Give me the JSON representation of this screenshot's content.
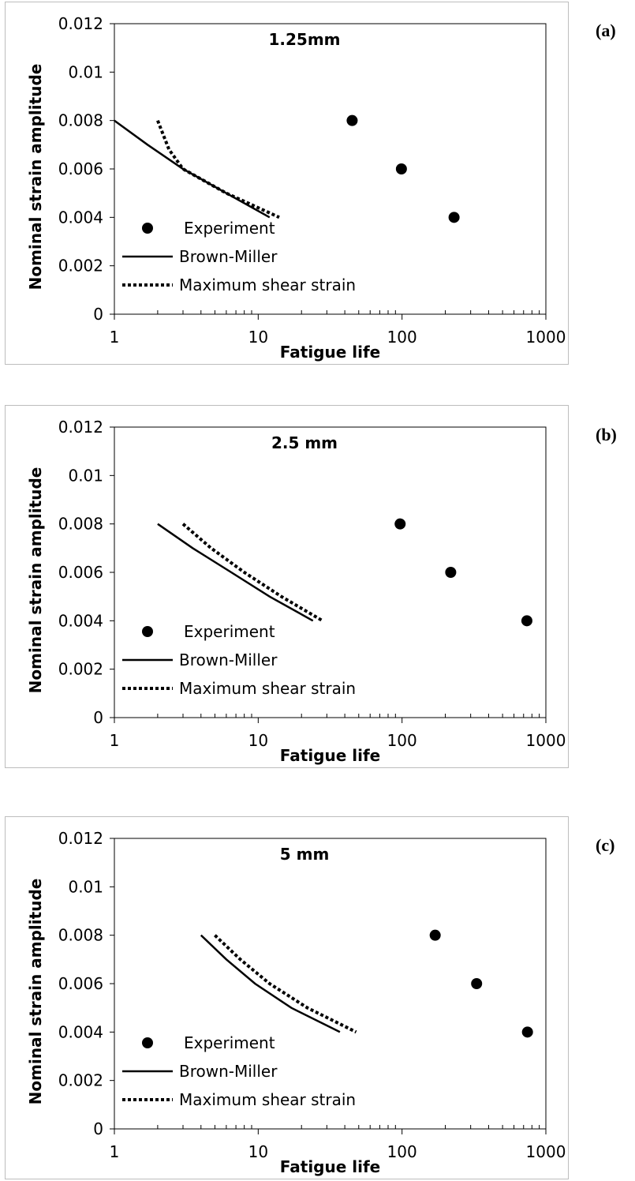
{
  "chart_data": [
    {
      "panel_label": "(a)",
      "type": "line",
      "title": "1.25mm",
      "xlabel": "Fatigue life",
      "ylabel": "Nominal strain amplitude",
      "x_scale": "log",
      "xlim": [
        1,
        1000
      ],
      "ylim": [
        0,
        0.012
      ],
      "x_ticks": [
        "1",
        "10",
        "100",
        "1000"
      ],
      "y_ticks": [
        "0",
        "0.002",
        "0.004",
        "0.006",
        "0.008",
        "0.01",
        "0.012"
      ],
      "grid": false,
      "legend_position": "lower-left",
      "series": [
        {
          "name": "Experiment",
          "style": "markers",
          "points": [
            [
              45,
              0.008
            ],
            [
              99,
              0.006
            ],
            [
              230,
              0.004
            ]
          ]
        },
        {
          "name": "Brown-Miller",
          "style": "solid",
          "points": [
            [
              1,
              0.008
            ],
            [
              1.7,
              0.007
            ],
            [
              3,
              0.006
            ],
            [
              6,
              0.005
            ],
            [
              12,
              0.004
            ]
          ]
        },
        {
          "name": "Maximum shear strain",
          "style": "dotted",
          "points": [
            [
              2,
              0.008
            ],
            [
              2.4,
              0.0068
            ],
            [
              3,
              0.006
            ],
            [
              6,
              0.005
            ],
            [
              14,
              0.004
            ]
          ]
        }
      ]
    },
    {
      "panel_label": "(b)",
      "type": "line",
      "title": "2.5 mm",
      "xlabel": "Fatigue life",
      "ylabel": "Nominal strain amplitude",
      "x_scale": "log",
      "xlim": [
        1,
        1000
      ],
      "ylim": [
        0,
        0.012
      ],
      "x_ticks": [
        "1",
        "10",
        "100",
        "1000"
      ],
      "y_ticks": [
        "0",
        "0.002",
        "0.004",
        "0.006",
        "0.008",
        "0.01",
        "0.012"
      ],
      "grid": false,
      "legend_position": "lower-left",
      "series": [
        {
          "name": "Experiment",
          "style": "markers",
          "points": [
            [
              97,
              0.008
            ],
            [
              218,
              0.006
            ],
            [
              738,
              0.004
            ]
          ]
        },
        {
          "name": "Brown-Miller",
          "style": "solid",
          "points": [
            [
              2,
              0.008
            ],
            [
              3.5,
              0.007
            ],
            [
              6.5,
              0.006
            ],
            [
              12,
              0.005
            ],
            [
              24,
              0.004
            ]
          ]
        },
        {
          "name": "Maximum shear strain",
          "style": "dotted",
          "points": [
            [
              3,
              0.008
            ],
            [
              4.7,
              0.007
            ],
            [
              8,
              0.006
            ],
            [
              14.5,
              0.005
            ],
            [
              28,
              0.004
            ]
          ]
        }
      ]
    },
    {
      "panel_label": "(c)",
      "type": "line",
      "title": "5 mm",
      "xlabel": "Fatigue life",
      "ylabel": "Nominal strain amplitude",
      "x_scale": "log",
      "xlim": [
        1,
        1000
      ],
      "ylim": [
        0,
        0.012
      ],
      "x_ticks": [
        "1",
        "10",
        "100",
        "1000"
      ],
      "y_ticks": [
        "0",
        "0.002",
        "0.004",
        "0.006",
        "0.008",
        "0.01",
        "0.012"
      ],
      "grid": false,
      "legend_position": "lower-left",
      "series": [
        {
          "name": "Experiment",
          "style": "markers",
          "points": [
            [
              170,
              0.008
            ],
            [
              330,
              0.006
            ],
            [
              745,
              0.004
            ]
          ]
        },
        {
          "name": "Brown-Miller",
          "style": "solid",
          "points": [
            [
              4,
              0.008
            ],
            [
              6,
              0.007
            ],
            [
              9.5,
              0.006
            ],
            [
              17,
              0.005
            ],
            [
              37,
              0.004
            ]
          ]
        },
        {
          "name": "Maximum shear strain",
          "style": "dotted",
          "points": [
            [
              5,
              0.008
            ],
            [
              7.5,
              0.007
            ],
            [
              12,
              0.006
            ],
            [
              22,
              0.005
            ],
            [
              48,
              0.004
            ]
          ]
        }
      ]
    }
  ]
}
